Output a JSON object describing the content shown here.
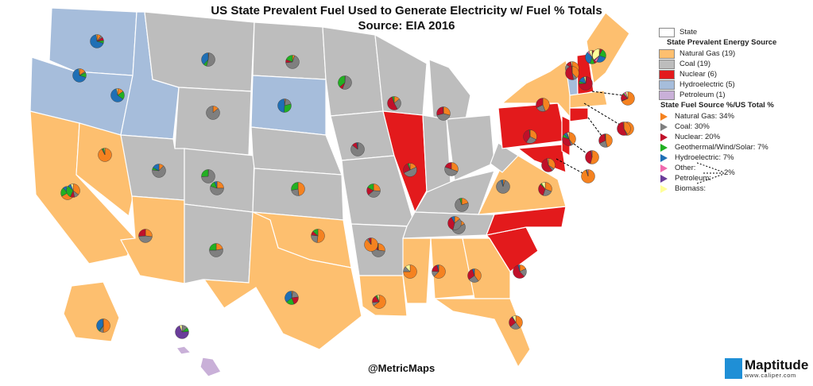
{
  "title_line1": "US State Prevalent Fuel Used to Generate Electricity w/ Fuel % Totals",
  "title_line2": "Source:  EIA 2016",
  "legend": {
    "state_label": "State",
    "prevalent_heading": "State Prevalent Energy Source",
    "prevalent": [
      {
        "label": "Natural Gas (19)",
        "color": "#fdbf6f"
      },
      {
        "label": "Coal (19)",
        "color": "#bdbdbd"
      },
      {
        "label": "Nuclear (6)",
        "color": "#e31a1c"
      },
      {
        "label": "Hydroelectric (5)",
        "color": "#a6bddb"
      },
      {
        "label": "Petroleum (1)",
        "color": "#c9b0d8"
      }
    ],
    "fuel_heading": "State Fuel Source %/US Total %",
    "fuels": [
      {
        "label": "Natural Gas:  34%",
        "color": "#f58220"
      },
      {
        "label": "Coal: 30%",
        "color": "#7f7f7f"
      },
      {
        "label": "Nuclear: 20%",
        "color": "#c0102a"
      },
      {
        "label": "Geothermal/Wind/Solar: 7%",
        "color": "#22b022"
      },
      {
        "label": "Hydroelectric: 7%",
        "color": "#1f6fb5"
      },
      {
        "label": "Other:",
        "color": "#f06aae"
      },
      {
        "label": "Petroleum:",
        "color": "#6a3d9a"
      },
      {
        "label": "Biomass:",
        "color": "#ffff99"
      }
    ],
    "combined_pct": "2%"
  },
  "credit": "@MetricMaps",
  "logo": {
    "name": "Maptitude",
    "url": "www.caliper.com"
  },
  "pie_shares_order": [
    "gas",
    "coal",
    "nuclear",
    "wind",
    "hydro",
    "other",
    "petroleum",
    "biomass"
  ],
  "pies": [
    [
      0.1,
      0.05,
      0.08,
      0.07,
      0.68,
      0,
      0,
      0.02
    ],
    [
      0.15,
      0.03,
      0,
      0.12,
      0.68,
      0,
      0,
      0.02
    ],
    [
      0.15,
      0,
      0,
      0.2,
      0.62,
      0,
      0,
      0.03
    ],
    [
      0.02,
      0.52,
      0,
      0.08,
      0.38,
      0,
      0,
      0
    ],
    [
      0.14,
      0.86,
      0,
      0,
      0,
      0,
      0,
      0
    ],
    [
      0.01,
      0.73,
      0,
      0.26,
      0,
      0,
      0,
      0
    ],
    [
      0.03,
      0.18,
      0,
      0.3,
      0.49,
      0,
      0,
      0
    ],
    [
      0.92,
      0.02,
      0,
      0.04,
      0,
      0,
      0,
      0.02
    ],
    [
      0.6,
      0,
      0,
      0.2,
      0.08,
      0,
      0,
      0.02
    ],
    [
      0.32,
      0.1,
      0.09,
      0.27,
      0.07,
      0,
      0,
      0.05
    ],
    [
      0.12,
      0.65,
      0,
      0.06,
      0.17,
      0,
      0,
      0
    ],
    [
      0.27,
      0.47,
      0.26,
      0,
      0,
      0,
      0,
      0
    ],
    [
      0.25,
      0.55,
      0,
      0.14,
      0.06,
      0,
      0,
      0
    ],
    [
      0.22,
      0.53,
      0,
      0.25,
      0,
      0,
      0,
      0
    ],
    [
      0.05,
      0.63,
      0.07,
      0.18,
      0,
      0,
      0,
      0
    ],
    [
      0.48,
      0.24,
      0,
      0.28,
      0,
      0,
      0,
      0
    ],
    [
      0.52,
      0.25,
      0.1,
      0.13,
      0,
      0,
      0,
      0
    ],
    [
      0.03,
      0.2,
      0.21,
      0.2,
      0.36,
      0,
      0,
      0
    ],
    [
      0.01,
      0.55,
      0.08,
      0.36,
      0,
      0,
      0,
      0
    ],
    [
      0.01,
      0.76,
      0.11,
      0,
      0.02,
      0,
      0,
      0
    ],
    [
      0.26,
      0.38,
      0.19,
      0.17,
      0,
      0,
      0,
      0
    ],
    [
      0.24,
      0.48,
      0.13,
      0.02,
      0.01,
      0,
      0,
      0
    ],
    [
      0.61,
      0.08,
      0.17,
      0.04,
      0,
      0,
      0,
      0.04
    ],
    [
      0.55,
      0.03,
      0.04,
      0,
      0,
      0,
      0,
      0
    ],
    [
      0.18,
      0.5,
      0.26,
      0.04,
      0,
      0,
      0,
      0.02
    ],
    [
      0.14,
      0.28,
      0.53,
      0.05,
      0,
      0,
      0,
      0
    ],
    [
      0.29,
      0.42,
      0.28,
      0,
      0.01,
      0,
      0,
      0
    ],
    [
      0.28,
      0.45,
      0.18,
      0,
      0,
      0,
      0,
      0
    ],
    [
      0.2,
      0.73,
      0,
      0.05,
      0,
      0,
      0,
      0
    ],
    [
      0.17,
      0.75,
      0,
      0,
      0.08,
      0,
      0,
      0
    ],
    [
      0.05,
      0.9,
      0,
      0,
      0.05,
      0,
      0,
      0
    ],
    [
      0.14,
      0.4,
      0.38,
      0,
      0.08,
      0,
      0,
      0
    ],
    [
      0.75,
      0.13,
      0,
      0,
      0,
      0,
      0,
      0.12
    ],
    [
      0.62,
      0.14,
      0.2,
      0,
      0.04,
      0,
      0,
      0
    ],
    [
      0.4,
      0.25,
      0.3,
      0,
      0.05,
      0,
      0,
      0
    ],
    [
      0.4,
      0.24,
      0.26,
      0,
      0.02,
      0,
      0,
      0.08
    ],
    [
      0.18,
      0.2,
      0.58,
      0,
      0.04,
      0,
      0,
      0
    ],
    [
      0.31,
      0.24,
      0.33,
      0.03,
      0,
      0,
      0,
      0.09
    ],
    [
      0.44,
      0.24,
      0.32,
      0,
      0,
      0,
      0,
      0
    ],
    [
      0.68,
      0.16,
      0.13,
      0,
      0,
      0,
      0,
      0.03
    ],
    [
      0.35,
      0.29,
      0.42,
      0.02,
      0,
      0,
      0,
      0
    ],
    [
      0.34,
      0.06,
      0.58,
      0,
      0,
      0,
      0,
      0.02
    ],
    [
      0.4,
      0.05,
      0.35,
      0.07,
      0.07,
      0.02,
      0,
      0.04
    ],
    [
      0.02,
      0,
      0.72,
      0.06,
      0.16,
      0,
      0,
      0.04
    ],
    [
      0.02,
      0,
      0.42,
      0.11,
      0.33,
      0.04,
      0,
      0.08
    ],
    [
      0.03,
      0,
      0.05,
      0.22,
      0.26,
      0.06,
      0.02,
      0.36
    ],
    [
      0.67,
      0.01,
      0.17,
      0.03,
      0,
      0.05,
      0,
      0.05
    ],
    [
      0.94,
      0,
      0,
      0,
      0.01,
      0.05,
      0,
      0
    ],
    [
      0.46,
      0.22,
      0.3,
      0.01,
      0,
      0,
      0.01,
      0
    ],
    [
      0.95,
      0,
      0,
      0.02,
      0,
      0.03,
      0,
      0
    ],
    [
      0.54,
      0,
      0.43,
      0.01,
      0,
      0.02,
      0,
      0
    ],
    [
      0.41,
      0.02,
      0.56,
      0,
      0,
      0,
      0,
      0.01
    ],
    [
      0.38,
      0.09,
      0.52,
      0.01,
      0,
      0,
      0,
      0
    ],
    [
      0.5,
      0.09,
      0,
      0.03,
      0.37,
      0,
      0,
      0.01
    ],
    [
      0,
      0.14,
      0,
      0.1,
      0,
      0,
      0.7,
      0.06
    ]
  ]
}
